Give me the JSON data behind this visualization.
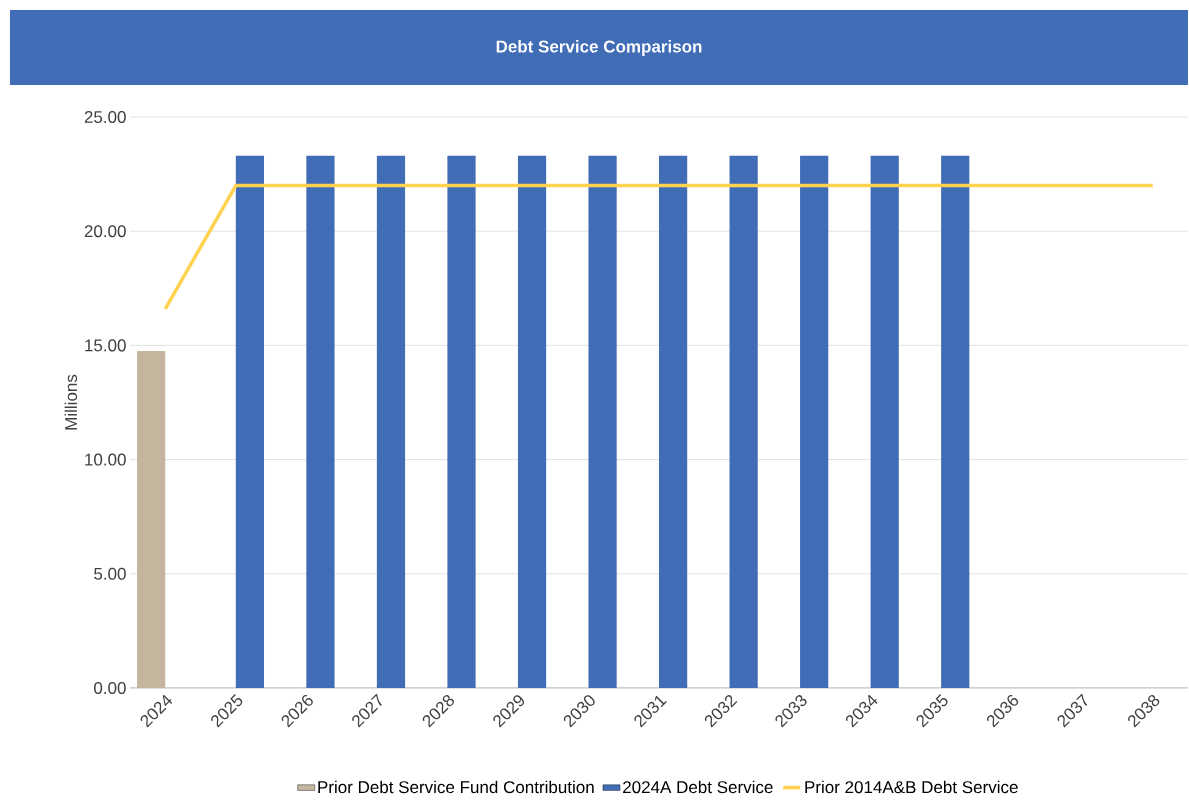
{
  "chart_data": {
    "type": "bar",
    "title": "Debt Service Comparison",
    "ylabel": "Millions",
    "categories": [
      "2024",
      "2025",
      "2026",
      "2027",
      "2028",
      "2029",
      "2030",
      "2031",
      "2032",
      "2033",
      "2034",
      "2035",
      "2036",
      "2037",
      "2038"
    ],
    "series": [
      {
        "name": "Prior Debt Service Fund Contribution",
        "color": "#c4b59f",
        "values": [
          14.75,
          null,
          null,
          null,
          null,
          null,
          null,
          null,
          null,
          null,
          null,
          null,
          null,
          null,
          null
        ]
      },
      {
        "name": "2024A Debt Service",
        "color": "#416cb6",
        "values": [
          null,
          23.3,
          23.3,
          23.3,
          23.3,
          23.3,
          23.3,
          23.3,
          23.3,
          23.3,
          23.3,
          23.3,
          null,
          null,
          null
        ]
      },
      {
        "name": "Prior 2014A&B Debt Service",
        "type": "line",
        "color": "#ffd24f",
        "values": [
          16.6,
          22.0,
          22.0,
          22.0,
          22.0,
          22.0,
          22.0,
          22.0,
          22.0,
          22.0,
          22.0,
          22.0,
          22.0,
          22.0,
          22.0
        ]
      }
    ],
    "ylim": [
      0,
      25
    ],
    "yticks": [
      {
        "value": 0,
        "label": "0.00"
      },
      {
        "value": 5,
        "label": "5.00"
      },
      {
        "value": 10,
        "label": "10.00"
      },
      {
        "value": 15,
        "label": "15.00"
      },
      {
        "value": 20,
        "label": "20.00"
      },
      {
        "value": 25,
        "label": "25.00"
      }
    ],
    "grid": "y",
    "legend": "bottom"
  }
}
